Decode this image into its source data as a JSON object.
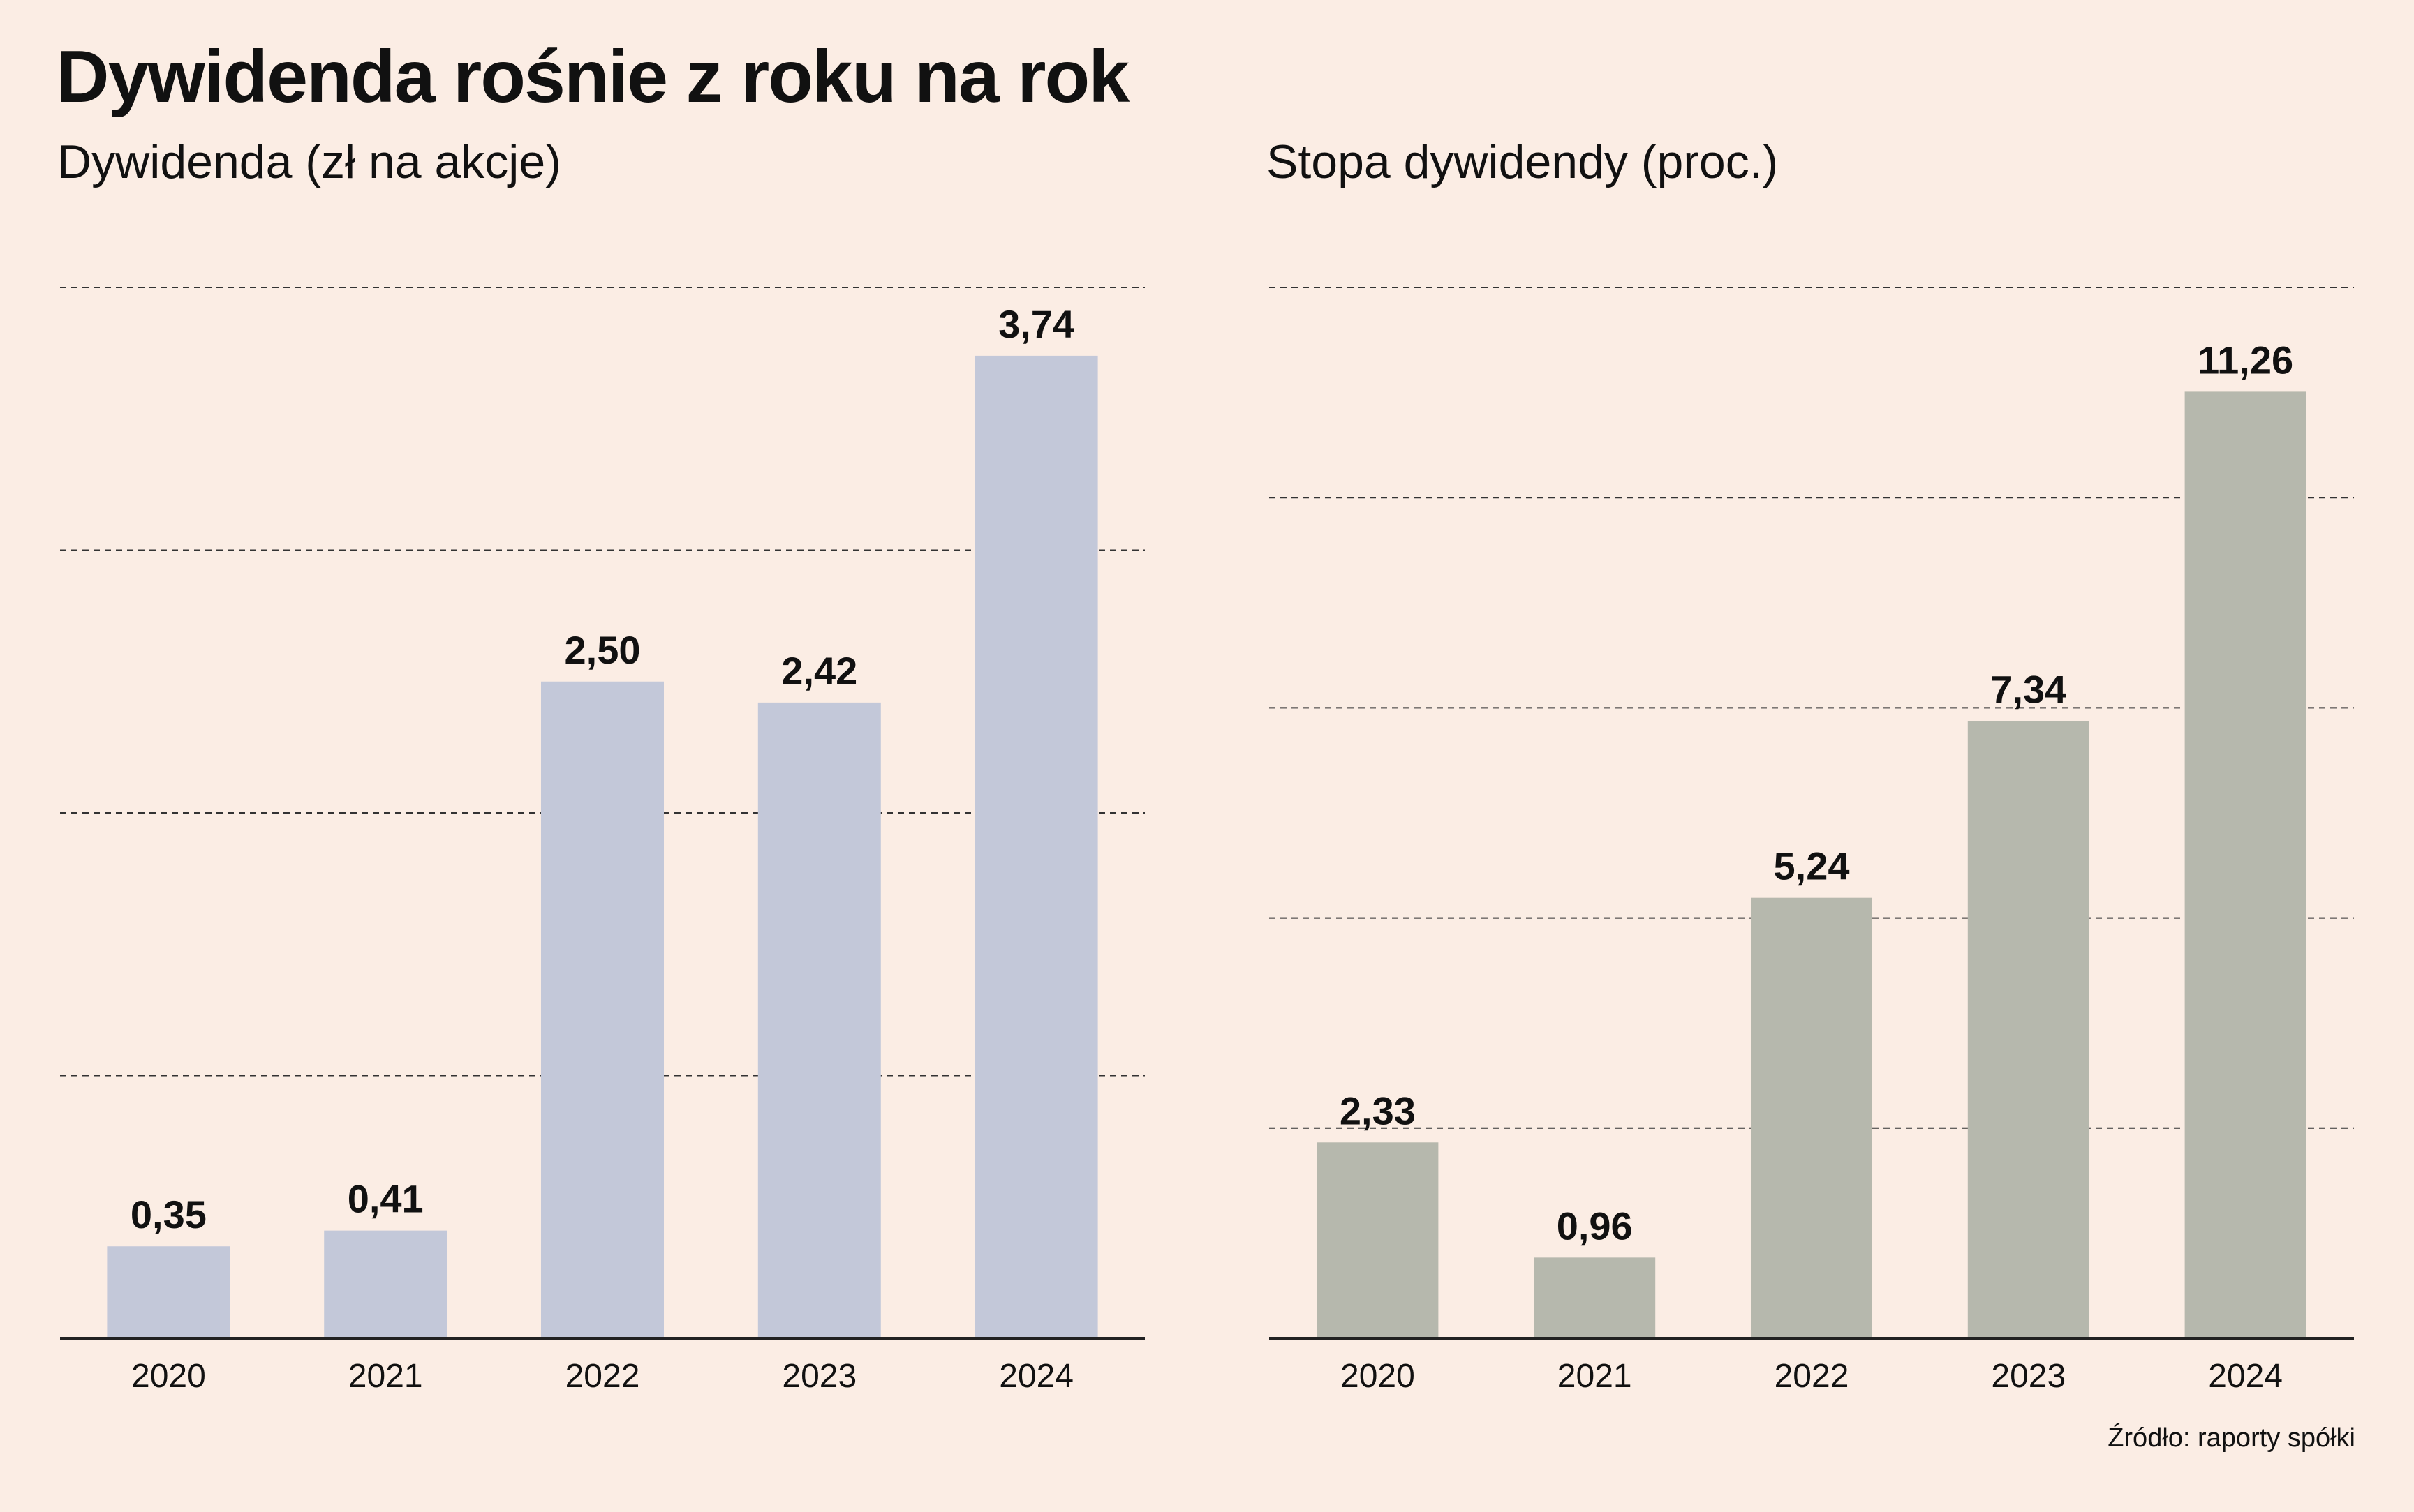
{
  "title": "Dywidenda rośnie z roku na rok",
  "source": "Źródło: raporty spółki",
  "colors": {
    "background": "#fbede4",
    "dividend_bar": "#c3c8d9",
    "yield_bar": "#b6b8ad",
    "gridline": "#333333",
    "text": "#111111"
  },
  "chart_data": [
    {
      "type": "bar",
      "title": "Dywidenda (zł na akcje)",
      "categories": [
        "2020",
        "2021",
        "2022",
        "2023",
        "2024"
      ],
      "values": [
        0.35,
        0.41,
        2.5,
        2.42,
        3.74
      ],
      "value_labels": [
        "0,35",
        "0,41",
        "2,50",
        "2,42",
        "3,74"
      ],
      "xlabel": "",
      "ylabel": "",
      "ylim": [
        0,
        4.0
      ],
      "grid": true,
      "color": "#c3c8d9"
    },
    {
      "type": "bar",
      "title": "Stopa dywidendy (proc.)",
      "categories": [
        "2020",
        "2021",
        "2022",
        "2023",
        "2024"
      ],
      "values": [
        2.33,
        0.96,
        5.24,
        7.34,
        11.26
      ],
      "value_labels": [
        "2,33",
        "0,96",
        "5,24",
        "7,34",
        "11,26"
      ],
      "xlabel": "",
      "ylabel": "",
      "ylim": [
        0,
        12.5
      ],
      "grid": true,
      "color": "#b6b8ad"
    }
  ]
}
